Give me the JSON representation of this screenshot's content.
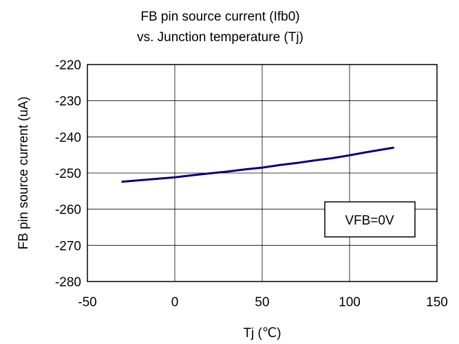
{
  "chart_data": {
    "type": "line",
    "title_lines": [
      "FB pin source current (Ifb0)",
      "vs. Junction temperature (Tj)"
    ],
    "xlabel": "Tj (℃)",
    "ylabel": "FB pin source current (uA)",
    "xlim": [
      -50,
      150
    ],
    "ylim": [
      -280,
      -220
    ],
    "x_ticks": [
      -50,
      0,
      50,
      100,
      150
    ],
    "y_ticks": [
      -220,
      -230,
      -240,
      -250,
      -260,
      -270,
      -280
    ],
    "x_tick_labels": [
      "-50",
      "0",
      "50",
      "100",
      "150"
    ],
    "y_tick_labels": [
      "-220",
      "-230",
      "-240",
      "-250",
      "-260",
      "-270",
      "-280"
    ],
    "grid": true,
    "legend": "none",
    "annotation": "VFB=0V",
    "series": [
      {
        "color": "#000080",
        "x": [
          -30,
          -20,
          -10,
          0,
          10,
          20,
          30,
          40,
          50,
          60,
          70,
          80,
          90,
          100,
          110,
          125
        ],
        "y": [
          -252.4,
          -252.0,
          -251.6,
          -251.2,
          -250.6,
          -250.1,
          -249.6,
          -249.0,
          -248.5,
          -247.8,
          -247.2,
          -246.5,
          -245.9,
          -245.1,
          -244.2,
          -243.0
        ]
      }
    ]
  }
}
